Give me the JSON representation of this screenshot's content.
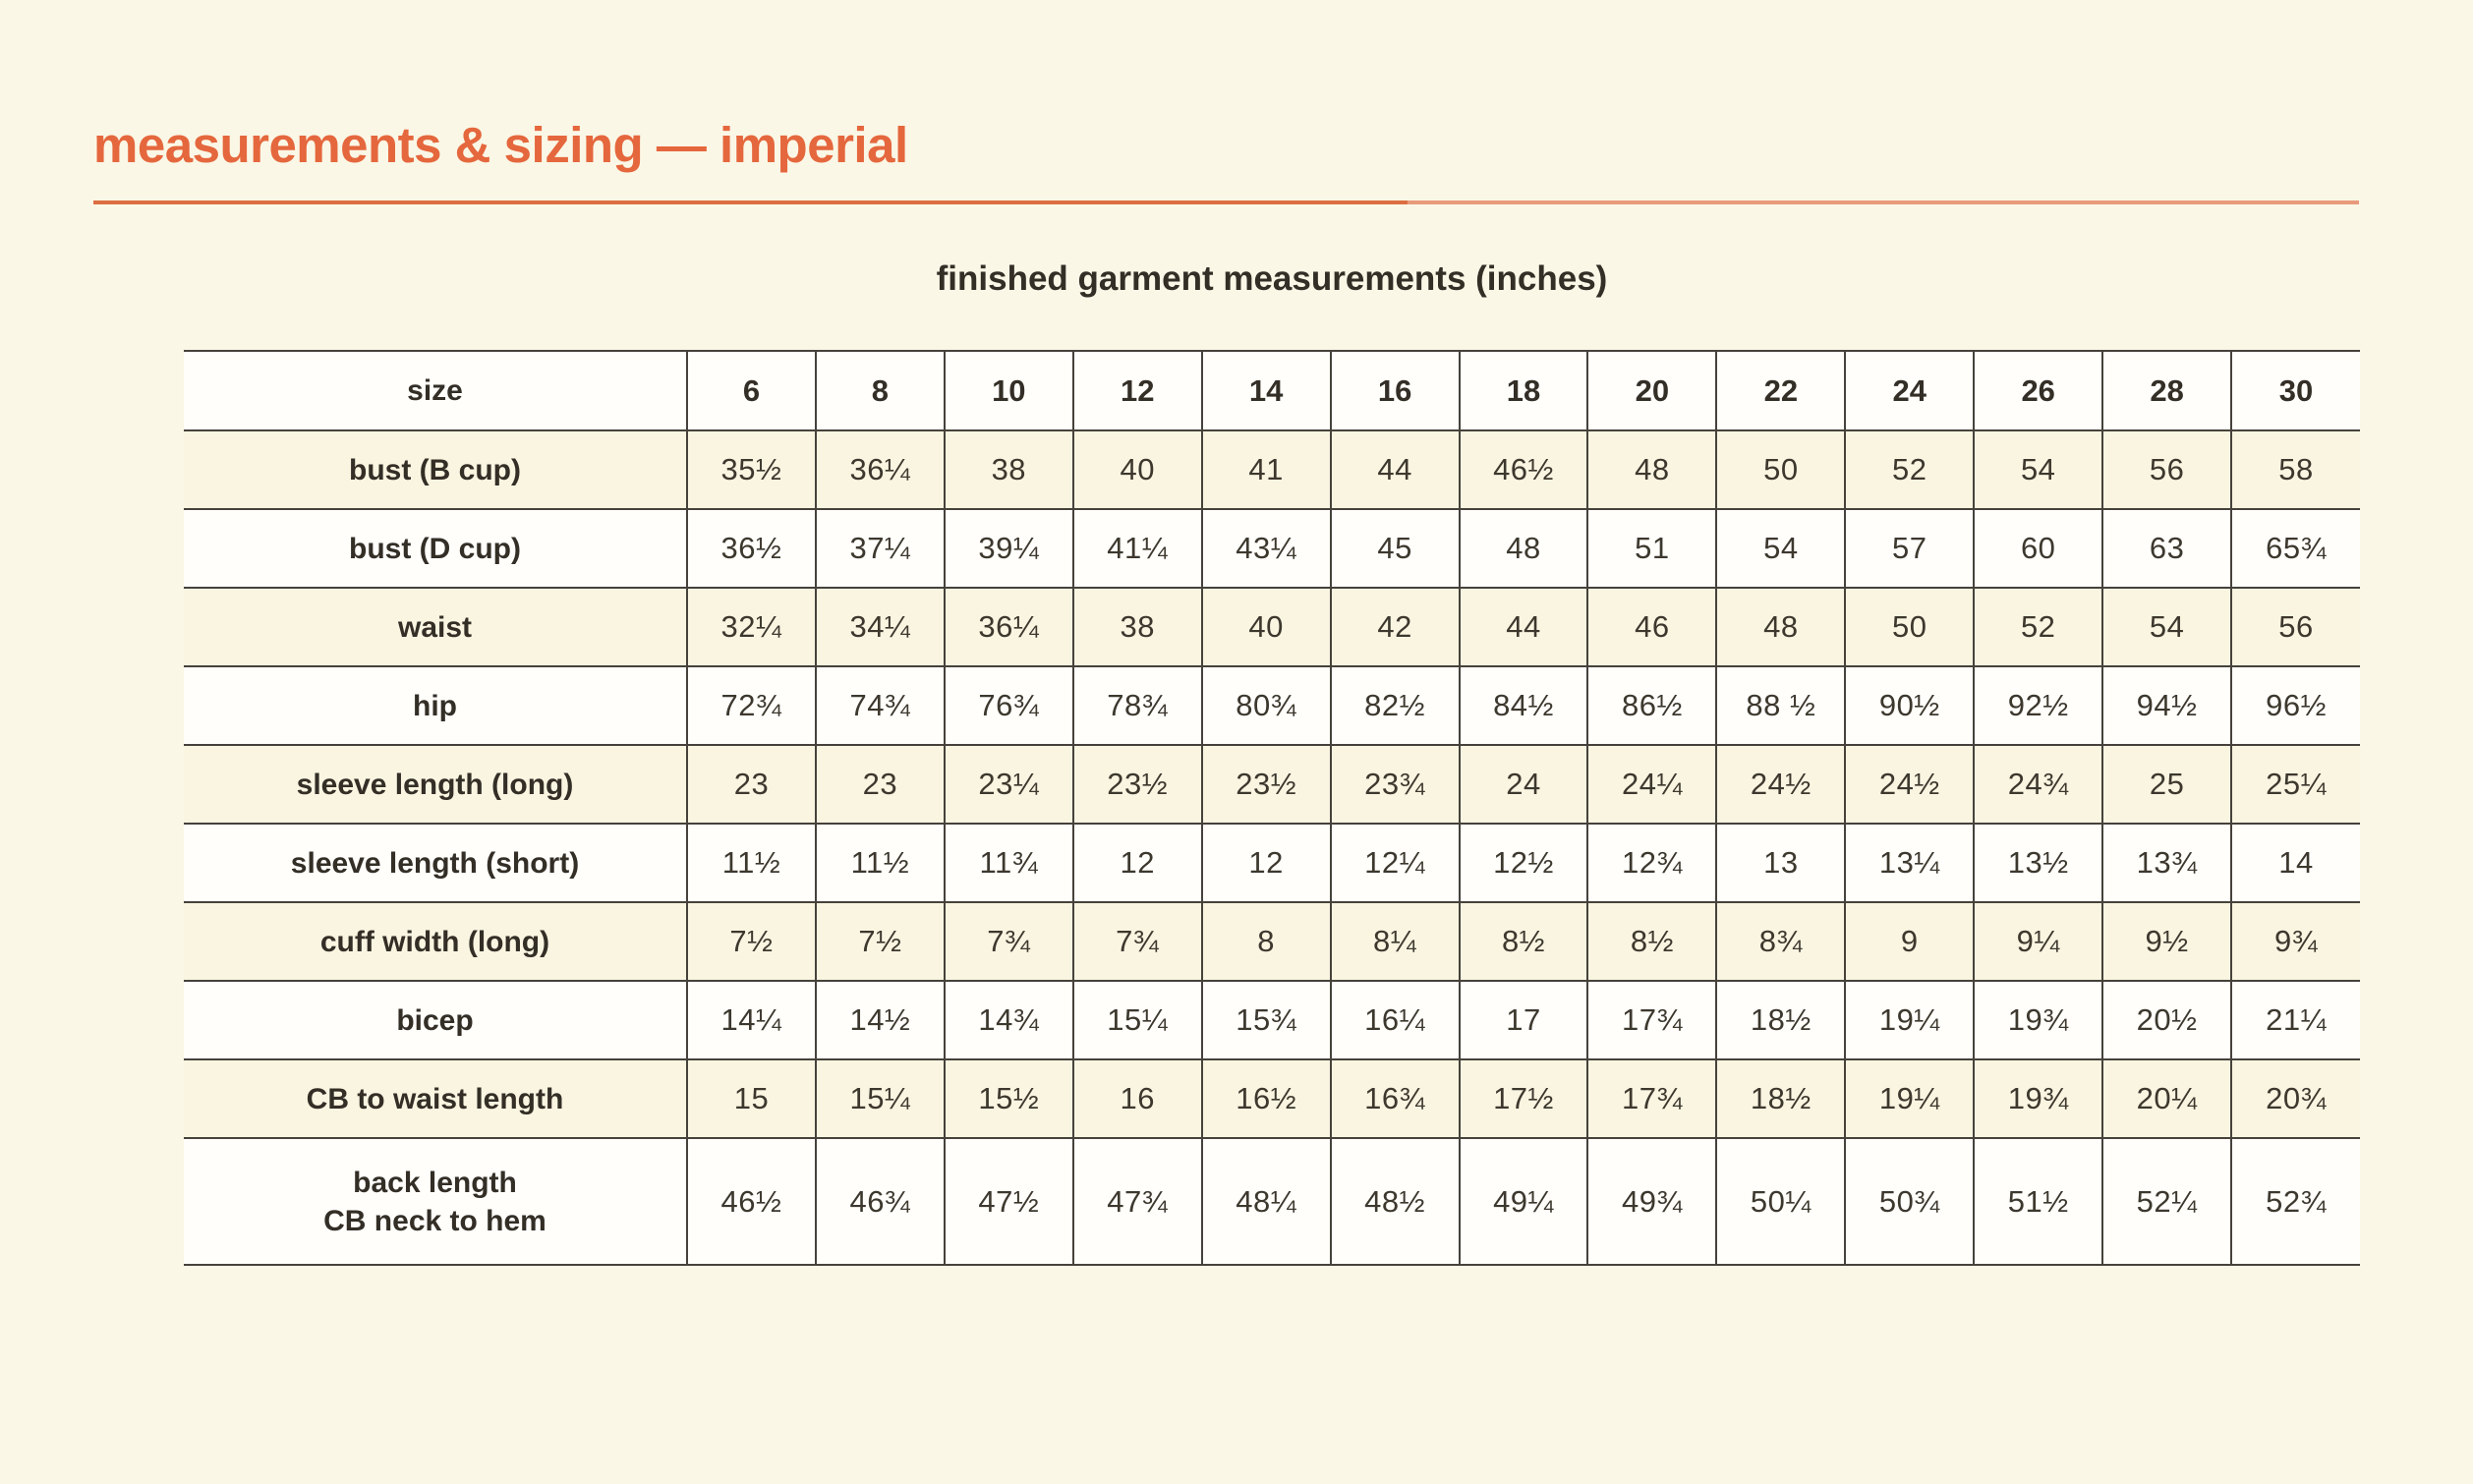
{
  "header": {
    "title": "measurements & sizing — imperial",
    "subtitle": "finished garment measurements (inches)"
  },
  "colors": {
    "page_background": "#faf7e6",
    "accent_orange": "#e5673d",
    "rule_orange_left": "#db6f42",
    "rule_orange_right": "#e89a7b",
    "grid_line": "#46423b",
    "row_cream": "#f9f5e1",
    "row_white": "#fffefb",
    "text_dark": "#332e26"
  },
  "table": {
    "corner_label": "size",
    "sizes": [
      "6",
      "8",
      "10",
      "12",
      "14",
      "16",
      "18",
      "20",
      "22",
      "24",
      "26",
      "28",
      "30"
    ],
    "rows": [
      {
        "label": "bust (B cup)",
        "values": [
          "35½",
          "36¼",
          "38",
          "40",
          "41",
          "44",
          "46½",
          "48",
          "50",
          "52",
          "54",
          "56",
          "58"
        ]
      },
      {
        "label": "bust (D cup)",
        "values": [
          "36½",
          "37¼",
          "39¼",
          "41¼",
          "43¼",
          "45",
          "48",
          "51",
          "54",
          "57",
          "60",
          "63",
          "65¾"
        ]
      },
      {
        "label": "waist",
        "values": [
          "32¼",
          "34¼",
          "36¼",
          "38",
          "40",
          "42",
          "44",
          "46",
          "48",
          "50",
          "52",
          "54",
          "56"
        ]
      },
      {
        "label": "hip",
        "values": [
          "72¾",
          "74¾",
          "76¾",
          "78¾",
          "80¾",
          "82½",
          "84½",
          "86½",
          "88 ½",
          "90½",
          "92½",
          "94½",
          "96½"
        ]
      },
      {
        "label": "sleeve length (long)",
        "values": [
          "23",
          "23",
          "23¼",
          "23½",
          "23½",
          "23¾",
          "24",
          "24¼",
          "24½",
          "24½",
          "24¾",
          "25",
          "25¼"
        ]
      },
      {
        "label": "sleeve length (short)",
        "values": [
          "11½",
          "11½",
          "11¾",
          "12",
          "12",
          "12¼",
          "12½",
          "12¾",
          "13",
          "13¼",
          "13½",
          "13¾",
          "14"
        ]
      },
      {
        "label": "cuff width (long)",
        "values": [
          "7½",
          "7½",
          "7¾",
          "7¾",
          "8",
          "8¼",
          "8½",
          "8½",
          "8¾",
          "9",
          "9¼",
          "9½",
          "9¾"
        ]
      },
      {
        "label": "bicep",
        "values": [
          "14¼",
          "14½",
          "14¾",
          "15¼",
          "15¾",
          "16¼",
          "17",
          "17¾",
          "18½",
          "19¼",
          "19¾",
          "20½",
          "21¼"
        ]
      },
      {
        "label": "CB to waist length",
        "values": [
          "15",
          "15¼",
          "15½",
          "16",
          "16½",
          "16¾",
          "17½",
          "17¾",
          "18½",
          "19¼",
          "19¾",
          "20¼",
          "20¾"
        ]
      },
      {
        "label": "back length\nCB neck to hem",
        "values": [
          "46½",
          "46¾",
          "47½",
          "47¾",
          "48¼",
          "48½",
          "49¼",
          "49¾",
          "50¼",
          "50¾",
          "51½",
          "52¼",
          "52¾"
        ]
      }
    ]
  }
}
